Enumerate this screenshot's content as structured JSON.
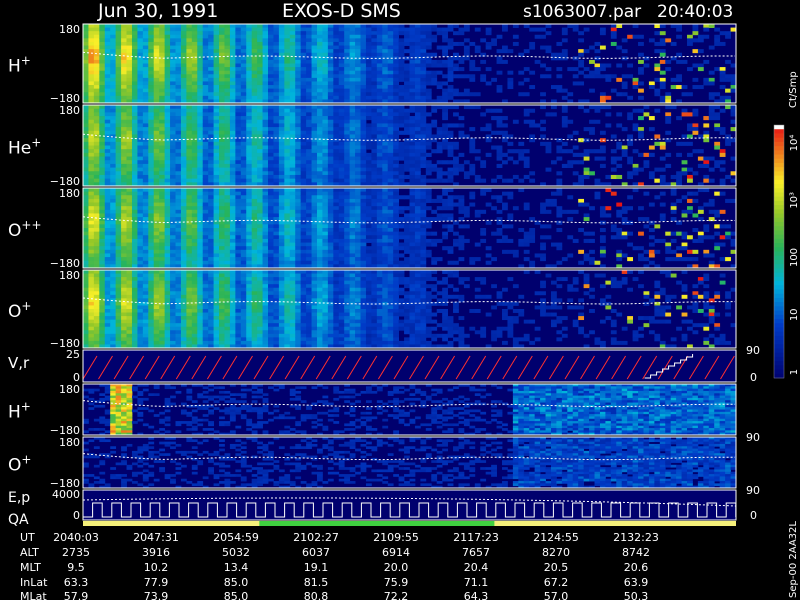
{
  "header": {
    "date": "Jun 30, 1991",
    "instrument": "EXOS-D SMS",
    "file": "s1063007.par",
    "time": "20:40:03"
  },
  "colorbar": {
    "unit_label": "Ct/Smp",
    "ticks": [
      "10⁴",
      "10³",
      "100",
      "10",
      "1"
    ],
    "scale": "log",
    "range": [
      1,
      10000
    ]
  },
  "side_label": "Sep-00 2AA32L",
  "chart_data": [
    {
      "type": "heatmap",
      "species_label": "H",
      "charge": "+",
      "ylim": [
        -180,
        180
      ],
      "tick_labels": [
        "180",
        "−180"
      ]
    },
    {
      "type": "heatmap",
      "species_label": "He",
      "charge": "+",
      "ylim": [
        -180,
        180
      ],
      "tick_labels": [
        "180",
        "−180"
      ]
    },
    {
      "type": "heatmap",
      "species_label": "O",
      "charge": "++",
      "ylim": [
        -180,
        180
      ],
      "tick_labels": [
        "180",
        "−180"
      ]
    },
    {
      "type": "heatmap",
      "species_label": "O",
      "charge": "+",
      "ylim": [
        -180,
        180
      ],
      "tick_labels": [
        "180",
        "−180"
      ]
    },
    {
      "type": "line",
      "label": "V,r",
      "left_ticks": [
        "25",
        "0"
      ],
      "right_ticks": [
        "90",
        "0"
      ]
    },
    {
      "type": "heatmap",
      "species_label": "H",
      "charge": "+",
      "ylim": [
        -180,
        180
      ],
      "tick_labels": [
        "180",
        "−180"
      ]
    },
    {
      "type": "heatmap",
      "species_label": "O",
      "charge": "+",
      "ylim": [
        -180,
        180
      ],
      "tick_labels": [
        "180",
        "−180"
      ],
      "right_ticks": [
        "90"
      ]
    },
    {
      "type": "line",
      "label_top": "E,p",
      "label_bottom": "QA",
      "left_ticks": [
        "4000",
        "0"
      ],
      "right_ticks": [
        "90",
        "0"
      ]
    }
  ],
  "orbit_table": {
    "row_labels": [
      "UT",
      "ALT",
      "MLT",
      "InLat",
      "MLat"
    ],
    "columns": [
      [
        "2040:03",
        "2735",
        "9.5",
        "63.3",
        "57.9"
      ],
      [
        "2047:31",
        "3916",
        "10.2",
        "77.9",
        "73.9"
      ],
      [
        "2054:59",
        "5032",
        "13.4",
        "85.0",
        "85.0"
      ],
      [
        "2102:27",
        "6037",
        "19.1",
        "81.5",
        "80.8"
      ],
      [
        "2109:55",
        "6914",
        "20.0",
        "75.9",
        "72.2"
      ],
      [
        "2117:23",
        "7657",
        "20.4",
        "71.1",
        "64.3"
      ],
      [
        "2124:55",
        "8270",
        "20.5",
        "67.2",
        "57.0"
      ],
      [
        "2132:23",
        "8742",
        "20.6",
        "63.9",
        "50.3"
      ]
    ]
  }
}
